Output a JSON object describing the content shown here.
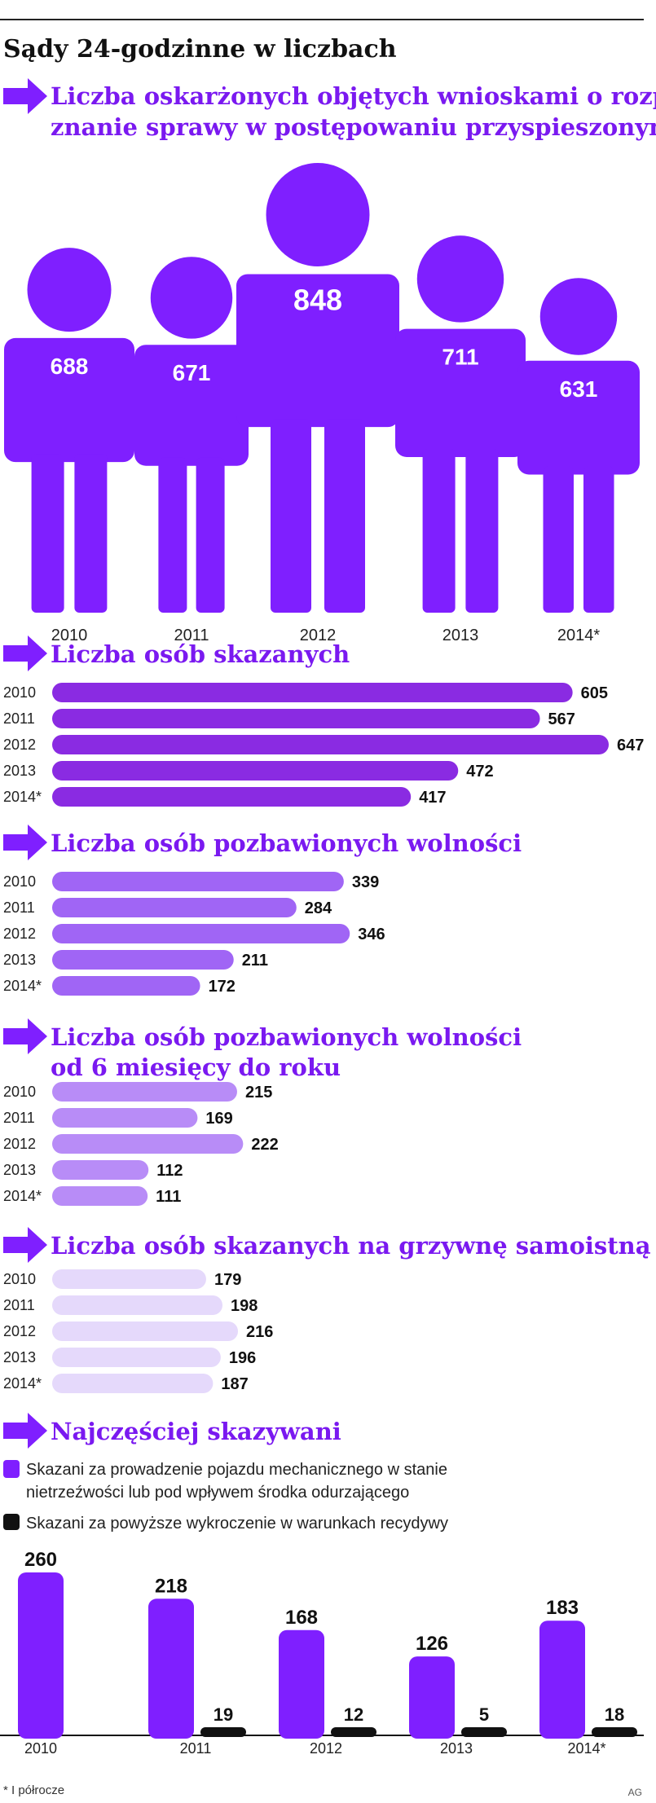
{
  "page": {
    "title": "Sądy 24-godzinne w liczbach",
    "footnote": "* I półrocze",
    "credit": "AG"
  },
  "colors": {
    "purple": "#7f1fff",
    "bar_deep": "#8a2be2",
    "bar_mid": "#a065f5",
    "bar_light": "#b88cf7",
    "bar_pale": "#e5d9fb",
    "black": "#111111",
    "heading": "#7a19f0"
  },
  "sections": {
    "people": {
      "title_line1": "Liczba oskarżonych objętych wnioskami o rozpo-",
      "title_line2": "znanie sprawy w postępowaniu przyspieszonym"
    },
    "convicted": {
      "title": "Liczba osób skazanych"
    },
    "imprisoned": {
      "title": "Liczba osób pozbawionych wolności"
    },
    "imprisoned_6_12": {
      "title_line1": "Liczba osób pozbawionych wolności",
      "title_line2": "od 6 miesięcy do roku"
    },
    "fine": {
      "title": "Liczba osób skazanych na grzywnę samoistną"
    },
    "most": {
      "title": "Najczęściej skazywani",
      "legend1_line1": "Skazani za prowadzenie pojazdu mechanicznego w stanie",
      "legend1_line2": "nietrzeźwości lub pod wpływem środka odurzającego",
      "legend2": "Skazani za powyższe wykroczenie w warunkach recydywy"
    }
  },
  "chart_data": [
    {
      "type": "bar",
      "id": "people",
      "title": "Liczba oskarżonych objętych wnioskami o rozpoznanie sprawy w postępowaniu przyspieszonym",
      "categories": [
        "2010",
        "2011",
        "2012",
        "2013",
        "2014*"
      ],
      "values": [
        688,
        671,
        848,
        711,
        631
      ]
    },
    {
      "type": "bar",
      "id": "convicted",
      "orientation": "horizontal",
      "title": "Liczba osób skazanych",
      "categories": [
        "2010",
        "2011",
        "2012",
        "2013",
        "2014*"
      ],
      "values": [
        605,
        567,
        647,
        472,
        417
      ],
      "xlim": [
        0,
        647
      ]
    },
    {
      "type": "bar",
      "id": "imprisoned",
      "orientation": "horizontal",
      "title": "Liczba osób pozbawionych wolności",
      "categories": [
        "2010",
        "2011",
        "2012",
        "2013",
        "2014*"
      ],
      "values": [
        339,
        284,
        346,
        211,
        172
      ],
      "xlim": [
        0,
        647
      ]
    },
    {
      "type": "bar",
      "id": "imprisoned_6_12",
      "orientation": "horizontal",
      "title": "Liczba osób pozbawionych wolności od 6 miesięcy do roku",
      "categories": [
        "2010",
        "2011",
        "2012",
        "2013",
        "2014*"
      ],
      "values": [
        215,
        169,
        222,
        112,
        111
      ],
      "xlim": [
        0,
        647
      ]
    },
    {
      "type": "bar",
      "id": "fine",
      "orientation": "horizontal",
      "title": "Liczba osób skazanych na grzywnę samoistną",
      "categories": [
        "2010",
        "2011",
        "2012",
        "2013",
        "2014*"
      ],
      "values": [
        179,
        198,
        216,
        196,
        187
      ],
      "xlim": [
        0,
        647
      ]
    },
    {
      "type": "bar",
      "id": "most",
      "title": "Najczęściej skazywani",
      "categories": [
        "2010",
        "2011",
        "2012",
        "2013",
        "2014*"
      ],
      "series": [
        {
          "name": "Skazani za prowadzenie pojazdu mechanicznego w stanie nietrzeźwości lub pod wpływem środka odurzającego",
          "values": [
            260,
            218,
            168,
            126,
            183
          ]
        },
        {
          "name": "Skazani za powyższe wykroczenie w warunkach recydywy",
          "values": [
            null,
            19,
            12,
            5,
            18
          ]
        }
      ]
    }
  ]
}
